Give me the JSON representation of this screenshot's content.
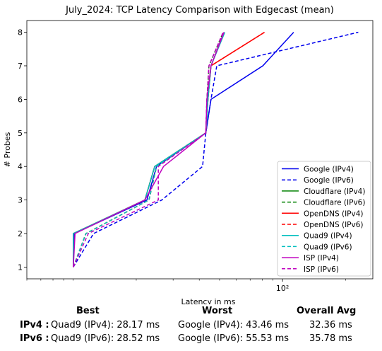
{
  "chart_data": {
    "type": "line",
    "title": "July_2024: TCP Latency Comparison with Edgecast (mean)",
    "xlabel": "Latency in ms",
    "ylabel": "# Probes",
    "xscale": "log",
    "xlim": [
      6,
      270
    ],
    "ylim": [
      0.65,
      8.35
    ],
    "xtick_labels": [
      {
        "value": 100,
        "label": "10²"
      }
    ],
    "yticks": [
      1,
      2,
      3,
      4,
      5,
      6,
      7,
      8
    ],
    "grid": false,
    "legend_position": "lower right",
    "series": [
      {
        "name": "Google (IPv4)",
        "color": "#0000ee",
        "dash": false,
        "points": [
          [
            10.0,
            1
          ],
          [
            10.1,
            2
          ],
          [
            22.5,
            3
          ],
          [
            25.0,
            4
          ],
          [
            43.0,
            5
          ],
          [
            45.5,
            6
          ],
          [
            80.5,
            7
          ],
          [
            113.0,
            8
          ]
        ]
      },
      {
        "name": "Google (IPv6)",
        "color": "#0000ee",
        "dash": true,
        "points": [
          [
            10.0,
            1
          ],
          [
            12.5,
            2
          ],
          [
            26.5,
            3
          ],
          [
            41.5,
            4
          ],
          [
            43.0,
            5
          ],
          [
            45.5,
            6
          ],
          [
            48.5,
            7
          ],
          [
            230.0,
            8
          ]
        ]
      },
      {
        "name": "Cloudflare (IPv4)",
        "color": "#008000",
        "dash": false,
        "points": [
          [
            10.0,
            1
          ],
          [
            10.0,
            2
          ],
          [
            22.0,
            3
          ],
          [
            24.5,
            4
          ],
          [
            43.0,
            5
          ],
          [
            44.0,
            6
          ],
          [
            45.5,
            7
          ],
          [
            52.5,
            8
          ]
        ]
      },
      {
        "name": "Cloudflare (IPv6)",
        "color": "#008000",
        "dash": true,
        "points": [
          [
            10.0,
            1
          ],
          [
            11.5,
            2
          ],
          [
            23.0,
            3
          ],
          [
            25.0,
            4
          ],
          [
            43.0,
            5
          ],
          [
            43.5,
            6
          ],
          [
            44.5,
            7
          ],
          [
            52.0,
            8
          ]
        ]
      },
      {
        "name": "OpenDNS (IPv4)",
        "color": "#ff0000",
        "dash": false,
        "points": [
          [
            10.0,
            1
          ],
          [
            10.0,
            2
          ],
          [
            22.0,
            3
          ],
          [
            24.5,
            4
          ],
          [
            43.0,
            5
          ],
          [
            44.0,
            6
          ],
          [
            45.5,
            7
          ],
          [
            82.0,
            8
          ]
        ]
      },
      {
        "name": "OpenDNS (IPv6)",
        "color": "#ff0000",
        "dash": true,
        "points": [
          [
            10.0,
            1
          ],
          [
            11.5,
            2
          ],
          [
            23.0,
            3
          ],
          [
            25.0,
            4
          ],
          [
            43.0,
            5
          ],
          [
            43.5,
            6
          ],
          [
            45.5,
            7
          ],
          [
            82.0,
            8
          ]
        ]
      },
      {
        "name": "Quad9 (IPv4)",
        "color": "#00bfbf",
        "dash": false,
        "points": [
          [
            10.0,
            1
          ],
          [
            10.0,
            2
          ],
          [
            22.0,
            3
          ],
          [
            24.5,
            4
          ],
          [
            43.0,
            5
          ],
          [
            44.0,
            6
          ],
          [
            45.5,
            7
          ],
          [
            53.0,
            8
          ]
        ]
      },
      {
        "name": "Quad9 (IPv6)",
        "color": "#00bfbf",
        "dash": true,
        "points": [
          [
            10.0,
            1
          ],
          [
            11.5,
            2
          ],
          [
            23.0,
            3
          ],
          [
            25.0,
            4
          ],
          [
            43.0,
            5
          ],
          [
            43.5,
            6
          ],
          [
            45.5,
            7
          ],
          [
            52.5,
            8
          ]
        ]
      },
      {
        "name": "ISP (IPv4)",
        "color": "#bf00bf",
        "dash": false,
        "points": [
          [
            10.0,
            1
          ],
          [
            10.2,
            2
          ],
          [
            22.0,
            3
          ],
          [
            27.0,
            4
          ],
          [
            43.0,
            5
          ],
          [
            43.5,
            6
          ],
          [
            45.5,
            7
          ],
          [
            52.5,
            8
          ]
        ]
      },
      {
        "name": "ISP (IPv6)",
        "color": "#bf00bf",
        "dash": true,
        "points": [
          [
            10.0,
            1
          ],
          [
            11.8,
            2
          ],
          [
            25.5,
            3
          ],
          [
            25.5,
            4
          ],
          [
            43.0,
            5
          ],
          [
            43.5,
            6
          ],
          [
            44.5,
            7
          ],
          [
            52.0,
            8
          ]
        ]
      }
    ]
  },
  "summary": {
    "headers": {
      "best": "Best",
      "worst": "Worst",
      "avg": "Overall Avg"
    },
    "rows": [
      {
        "label": "IPv4 :",
        "best": "Quad9 (IPv4): 28.17 ms",
        "worst": "Google (IPv4): 43.46 ms",
        "avg": "32.36 ms"
      },
      {
        "label": "IPv6 :",
        "best": "Quad9 (IPv6): 28.52 ms",
        "worst": "Google (IPv6): 55.53 ms",
        "avg": "35.78 ms"
      }
    ]
  }
}
